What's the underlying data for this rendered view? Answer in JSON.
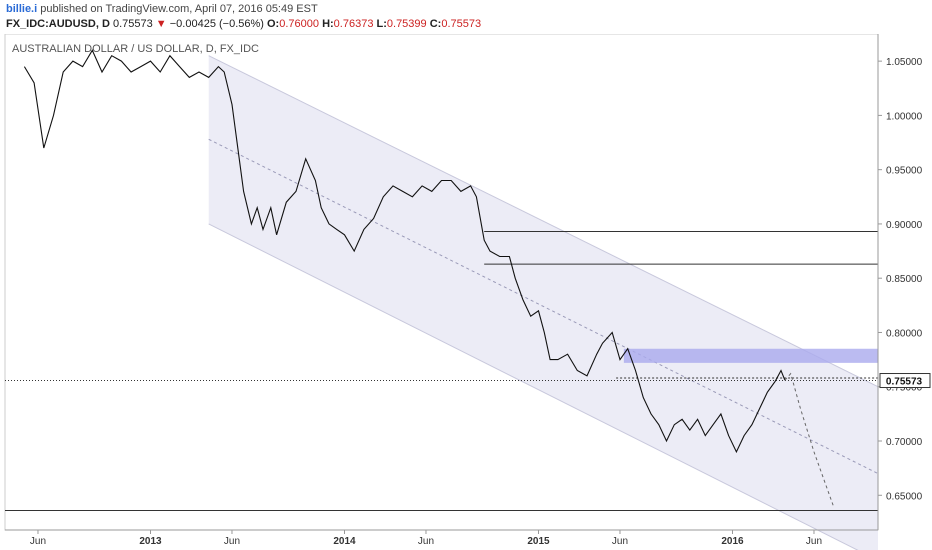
{
  "header": {
    "user": "billie.i",
    "published_text": "published on TradingView.com, April 07, 2016 05:49 EST",
    "symbol": "FX_IDC:AUDUSD, D",
    "last": "0.75573",
    "change": "−0.00425 (−0.56%)",
    "open_label": "O:",
    "open": "0.76000",
    "high_label": "H:",
    "high": "0.76373",
    "low_label": "L:",
    "low": "0.75399",
    "close_label": "C:",
    "close": "0.75573",
    "down_arrow": "▼"
  },
  "chart_data": {
    "type": "line",
    "title": "AUSTRALIAN DOLLAR / US DOLLAR, D, FX_IDC",
    "xlabel": "",
    "ylabel": "",
    "y_ticks": [
      "1.05000",
      "1.00000",
      "0.95000",
      "0.90000",
      "0.85000",
      "0.80000",
      "0.75000",
      "0.70000",
      "0.65000"
    ],
    "x_ticks": [
      "Jun",
      "2013",
      "Jun",
      "2014",
      "Jun",
      "2015",
      "Jun",
      "2016",
      "Jun"
    ],
    "ylim": [
      0.618,
      1.075
    ],
    "grid": false,
    "last_price_label": "0.75573",
    "series": [
      {
        "values": [
          [
            2012.35,
            1.045
          ],
          [
            2012.4,
            1.03
          ],
          [
            2012.45,
            0.97
          ],
          [
            2012.5,
            1.0
          ],
          [
            2012.55,
            1.04
          ],
          [
            2012.6,
            1.05
          ],
          [
            2012.65,
            1.045
          ],
          [
            2012.7,
            1.06
          ],
          [
            2012.75,
            1.04
          ],
          [
            2012.8,
            1.055
          ],
          [
            2012.85,
            1.05
          ],
          [
            2012.9,
            1.04
          ],
          [
            2012.95,
            1.045
          ],
          [
            2013.0,
            1.05
          ],
          [
            2013.05,
            1.04
          ],
          [
            2013.1,
            1.055
          ],
          [
            2013.15,
            1.045
          ],
          [
            2013.2,
            1.035
          ],
          [
            2013.25,
            1.04
          ],
          [
            2013.3,
            1.035
          ],
          [
            2013.35,
            1.045
          ],
          [
            2013.38,
            1.04
          ],
          [
            2013.42,
            1.01
          ],
          [
            2013.45,
            0.97
          ],
          [
            2013.48,
            0.93
          ],
          [
            2013.52,
            0.9
          ],
          [
            2013.55,
            0.915
          ],
          [
            2013.58,
            0.895
          ],
          [
            2013.62,
            0.915
          ],
          [
            2013.65,
            0.89
          ],
          [
            2013.7,
            0.92
          ],
          [
            2013.75,
            0.93
          ],
          [
            2013.8,
            0.96
          ],
          [
            2013.85,
            0.94
          ],
          [
            2013.88,
            0.915
          ],
          [
            2013.92,
            0.9
          ],
          [
            2013.96,
            0.895
          ],
          [
            2014.0,
            0.89
          ],
          [
            2014.05,
            0.875
          ],
          [
            2014.1,
            0.895
          ],
          [
            2014.15,
            0.905
          ],
          [
            2014.2,
            0.925
          ],
          [
            2014.25,
            0.935
          ],
          [
            2014.3,
            0.93
          ],
          [
            2014.35,
            0.925
          ],
          [
            2014.4,
            0.935
          ],
          [
            2014.45,
            0.93
          ],
          [
            2014.5,
            0.94
          ],
          [
            2014.55,
            0.94
          ],
          [
            2014.6,
            0.93
          ],
          [
            2014.65,
            0.935
          ],
          [
            2014.68,
            0.925
          ],
          [
            2014.72,
            0.885
          ],
          [
            2014.75,
            0.875
          ],
          [
            2014.8,
            0.87
          ],
          [
            2014.85,
            0.87
          ],
          [
            2014.88,
            0.85
          ],
          [
            2014.92,
            0.83
          ],
          [
            2014.96,
            0.815
          ],
          [
            2015.0,
            0.82
          ],
          [
            2015.03,
            0.8
          ],
          [
            2015.06,
            0.775
          ],
          [
            2015.1,
            0.775
          ],
          [
            2015.15,
            0.78
          ],
          [
            2015.2,
            0.765
          ],
          [
            2015.25,
            0.76
          ],
          [
            2015.3,
            0.78
          ],
          [
            2015.33,
            0.79
          ],
          [
            2015.38,
            0.8
          ],
          [
            2015.42,
            0.775
          ],
          [
            2015.46,
            0.785
          ],
          [
            2015.5,
            0.765
          ],
          [
            2015.54,
            0.74
          ],
          [
            2015.58,
            0.725
          ],
          [
            2015.62,
            0.715
          ],
          [
            2015.66,
            0.7
          ],
          [
            2015.7,
            0.715
          ],
          [
            2015.74,
            0.72
          ],
          [
            2015.78,
            0.71
          ],
          [
            2015.82,
            0.72
          ],
          [
            2015.86,
            0.705
          ],
          [
            2015.9,
            0.715
          ],
          [
            2015.94,
            0.725
          ],
          [
            2015.98,
            0.705
          ],
          [
            2016.02,
            0.69
          ],
          [
            2016.06,
            0.705
          ],
          [
            2016.1,
            0.715
          ],
          [
            2016.14,
            0.73
          ],
          [
            2016.18,
            0.745
          ],
          [
            2016.22,
            0.755
          ],
          [
            2016.25,
            0.765
          ],
          [
            2016.27,
            0.756
          ]
        ]
      }
    ],
    "projection": [
      [
        2016.27,
        0.756
      ],
      [
        2016.3,
        0.762
      ],
      [
        2016.35,
        0.73
      ],
      [
        2016.42,
        0.69
      ],
      [
        2016.52,
        0.64
      ]
    ],
    "channel": {
      "upper": [
        [
          2013.3,
          1.055
        ],
        [
          2016.75,
          0.75
        ]
      ],
      "lower": [
        [
          2013.3,
          0.9
        ],
        [
          2016.75,
          0.59
        ]
      ],
      "mid": [
        [
          2013.3,
          0.978
        ],
        [
          2016.75,
          0.67
        ]
      ]
    },
    "levels": [
      {
        "x0": 2014.72,
        "x1": 2016.75,
        "y": 0.893
      },
      {
        "x0": 2014.72,
        "x1": 2016.75,
        "y": 0.863
      },
      {
        "x0": 2012.25,
        "x1": 2016.75,
        "y": 0.636
      },
      {
        "x0": 2015.4,
        "x1": 2016.75,
        "y": 0.758
      }
    ],
    "resistance_zone": {
      "x0": 2015.44,
      "x1": 2016.75,
      "y0": 0.772,
      "y1": 0.785
    },
    "colors": {
      "price": "#111111",
      "channel_fill": "#e9e9f4",
      "channel_edge": "#c8c8dc",
      "zone": "#aaaaee",
      "projection": "#666666",
      "last_price_line": "#333333"
    }
  }
}
